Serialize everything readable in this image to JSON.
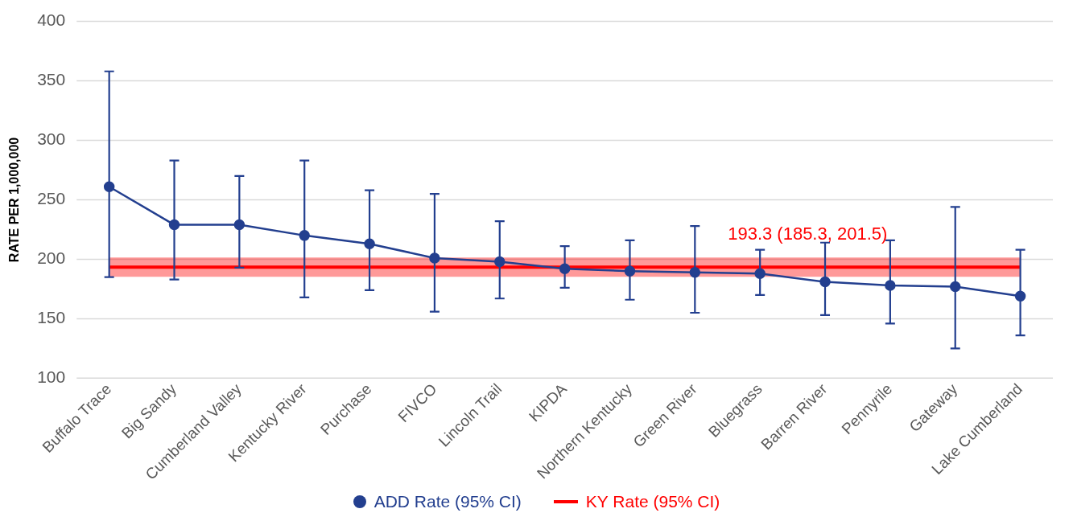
{
  "chart_data": {
    "type": "line",
    "ylabel": "RATE PER 1,000,000",
    "categories": [
      "Buffalo Trace",
      "Big Sandy",
      "Cumberland Valley",
      "Kentucky River",
      "Purchase",
      "FIVCO",
      "Lincoln Trail",
      "KIPDA",
      "Northern Kentucky",
      "Green River",
      "Bluegrass",
      "Barren River",
      "Pennyrile",
      "Gateway",
      "Lake Cumberland"
    ],
    "series": [
      {
        "name": "ADD Rate (95% CI)",
        "color": "#233f8f",
        "values": [
          261,
          229,
          229,
          220,
          213,
          201,
          198,
          192,
          190,
          189,
          188,
          181,
          178,
          177,
          169
        ],
        "errors": [
          [
            185,
            358
          ],
          [
            183,
            283
          ],
          [
            193,
            270
          ],
          [
            168,
            283
          ],
          [
            174,
            258
          ],
          [
            156,
            255
          ],
          [
            167,
            232
          ],
          [
            176,
            211
          ],
          [
            166,
            216
          ],
          [
            155,
            228
          ],
          [
            170,
            208
          ],
          [
            153,
            214
          ],
          [
            146,
            216
          ],
          [
            125,
            244
          ],
          [
            136,
            208
          ]
        ],
        "marker": "circle"
      },
      {
        "name": "KY Rate (95% CI)",
        "color": "#ff0000",
        "values": [
          193.3,
          193.3,
          193.3,
          193.3,
          193.3,
          193.3,
          193.3,
          193.3,
          193.3,
          193.3,
          193.3,
          193.3,
          193.3,
          193.3,
          193.3
        ],
        "lower": [
          185.3,
          185.3,
          185.3,
          185.3,
          185.3,
          185.3,
          185.3,
          185.3,
          185.3,
          185.3,
          185.3,
          185.3,
          185.3,
          185.3,
          185.3
        ],
        "upper": [
          201.5,
          201.5,
          201.5,
          201.5,
          201.5,
          201.5,
          201.5,
          201.5,
          201.5,
          201.5,
          201.5,
          201.5,
          201.5,
          201.5,
          201.5
        ],
        "marker": "none"
      }
    ],
    "annotations": [
      {
        "text": "193.3 (185.3, 201.5)",
        "x": "Bluegrass",
        "y": 193.3
      }
    ],
    "ylim": [
      100,
      400
    ],
    "yticks": [
      100,
      150,
      200,
      250,
      300,
      350,
      400
    ],
    "grid": "y",
    "legend": "bottom"
  }
}
